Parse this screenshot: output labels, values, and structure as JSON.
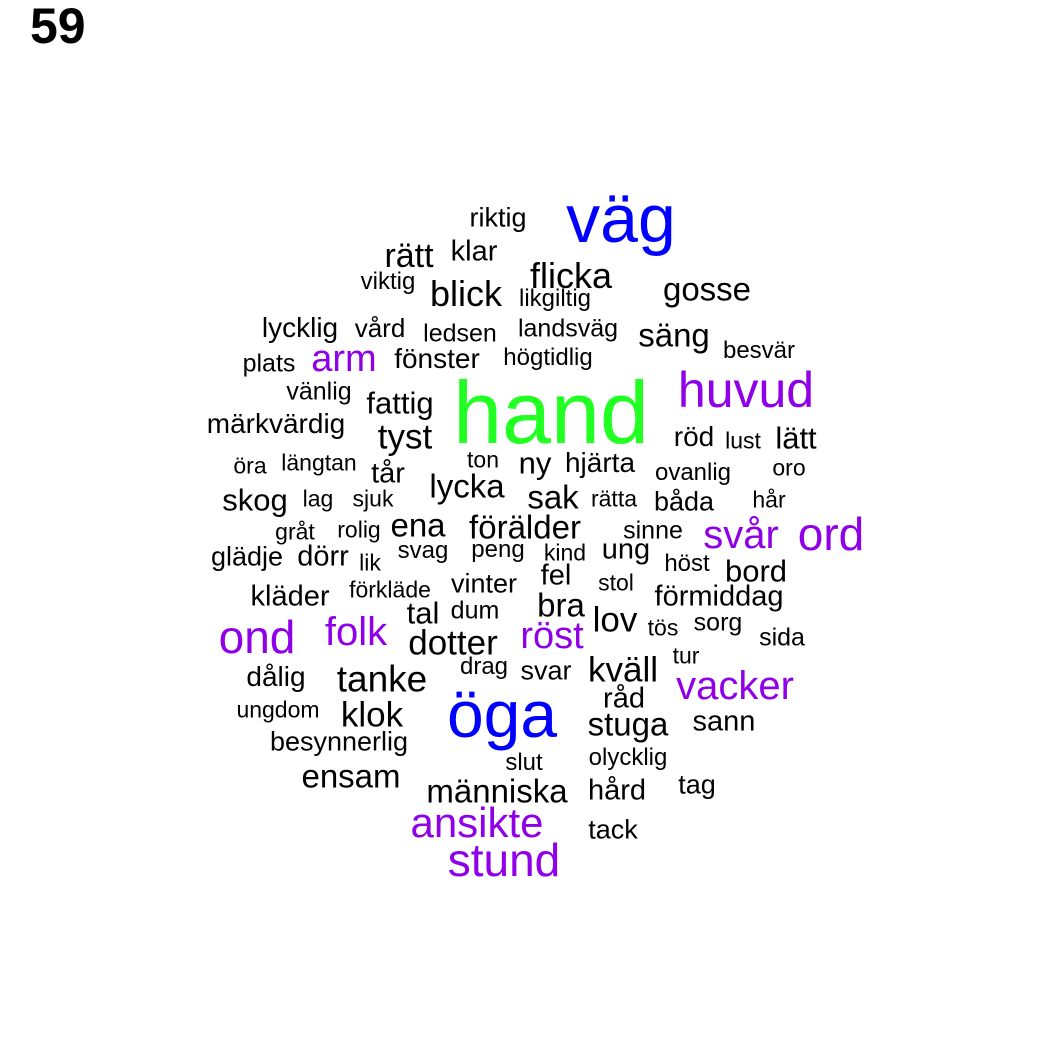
{
  "page_number": "59",
  "colors": {
    "biggest": "#22ff22",
    "big": "#0000ff",
    "medium": "#8f00e8",
    "small": "#000000"
  },
  "words": [
    {
      "text": "hand",
      "tier": "biggest"
    },
    {
      "text": "väg",
      "tier": "big"
    },
    {
      "text": "öga",
      "tier": "big"
    },
    {
      "text": "huvud",
      "tier": "medium"
    },
    {
      "text": "arm",
      "tier": "medium"
    },
    {
      "text": "svår",
      "tier": "medium"
    },
    {
      "text": "ord",
      "tier": "medium"
    },
    {
      "text": "ond",
      "tier": "medium"
    },
    {
      "text": "folk",
      "tier": "medium"
    },
    {
      "text": "röst",
      "tier": "medium"
    },
    {
      "text": "vacker",
      "tier": "medium"
    },
    {
      "text": "ansikte",
      "tier": "medium"
    },
    {
      "text": "stund",
      "tier": "medium"
    },
    {
      "text": "riktig",
      "tier": "small"
    },
    {
      "text": "rätt",
      "tier": "small"
    },
    {
      "text": "klar",
      "tier": "small"
    },
    {
      "text": "flicka",
      "tier": "small"
    },
    {
      "text": "viktig",
      "tier": "small"
    },
    {
      "text": "blick",
      "tier": "small"
    },
    {
      "text": "likgiltig",
      "tier": "small"
    },
    {
      "text": "gosse",
      "tier": "small"
    },
    {
      "text": "lycklig",
      "tier": "small"
    },
    {
      "text": "vård",
      "tier": "small"
    },
    {
      "text": "ledsen",
      "tier": "small"
    },
    {
      "text": "landsväg",
      "tier": "small"
    },
    {
      "text": "säng",
      "tier": "small"
    },
    {
      "text": "besvär",
      "tier": "small"
    },
    {
      "text": "plats",
      "tier": "small"
    },
    {
      "text": "fönster",
      "tier": "small"
    },
    {
      "text": "högtidlig",
      "tier": "small"
    },
    {
      "text": "vänlig",
      "tier": "small"
    },
    {
      "text": "fattig",
      "tier": "small"
    },
    {
      "text": "märkvärdig",
      "tier": "small"
    },
    {
      "text": "tyst",
      "tier": "small"
    },
    {
      "text": "röd",
      "tier": "small"
    },
    {
      "text": "lust",
      "tier": "small"
    },
    {
      "text": "lätt",
      "tier": "small"
    },
    {
      "text": "öra",
      "tier": "small"
    },
    {
      "text": "längtan",
      "tier": "small"
    },
    {
      "text": "ton",
      "tier": "small"
    },
    {
      "text": "ny",
      "tier": "small"
    },
    {
      "text": "hjärta",
      "tier": "small"
    },
    {
      "text": "ovanlig",
      "tier": "small"
    },
    {
      "text": "oro",
      "tier": "small"
    },
    {
      "text": "tår",
      "tier": "small"
    },
    {
      "text": "lycka",
      "tier": "small"
    },
    {
      "text": "skog",
      "tier": "small"
    },
    {
      "text": "lag",
      "tier": "small"
    },
    {
      "text": "sjuk",
      "tier": "small"
    },
    {
      "text": "sak",
      "tier": "small"
    },
    {
      "text": "rätta",
      "tier": "small"
    },
    {
      "text": "båda",
      "tier": "small"
    },
    {
      "text": "hår",
      "tier": "small"
    },
    {
      "text": "gråt",
      "tier": "small"
    },
    {
      "text": "rolig",
      "tier": "small"
    },
    {
      "text": "ena",
      "tier": "small"
    },
    {
      "text": "förälder",
      "tier": "small"
    },
    {
      "text": "sinne",
      "tier": "small"
    },
    {
      "text": "glädje",
      "tier": "small"
    },
    {
      "text": "dörr",
      "tier": "small"
    },
    {
      "text": "lik",
      "tier": "small"
    },
    {
      "text": "svag",
      "tier": "small"
    },
    {
      "text": "peng",
      "tier": "small"
    },
    {
      "text": "kind",
      "tier": "small"
    },
    {
      "text": "ung",
      "tier": "small"
    },
    {
      "text": "höst",
      "tier": "small"
    },
    {
      "text": "fel",
      "tier": "small"
    },
    {
      "text": "bord",
      "tier": "small"
    },
    {
      "text": "kläder",
      "tier": "small"
    },
    {
      "text": "förkläde",
      "tier": "small"
    },
    {
      "text": "vinter",
      "tier": "small"
    },
    {
      "text": "stol",
      "tier": "small"
    },
    {
      "text": "förmiddag",
      "tier": "small"
    },
    {
      "text": "tal",
      "tier": "small"
    },
    {
      "text": "dum",
      "tier": "small"
    },
    {
      "text": "bra",
      "tier": "small"
    },
    {
      "text": "lov",
      "tier": "small"
    },
    {
      "text": "tös",
      "tier": "small"
    },
    {
      "text": "sorg",
      "tier": "small"
    },
    {
      "text": "sida",
      "tier": "small"
    },
    {
      "text": "dotter",
      "tier": "small"
    },
    {
      "text": "tur",
      "tier": "small"
    },
    {
      "text": "dålig",
      "tier": "small"
    },
    {
      "text": "drag",
      "tier": "small"
    },
    {
      "text": "svar",
      "tier": "small"
    },
    {
      "text": "kväll",
      "tier": "small"
    },
    {
      "text": "tanke",
      "tier": "small"
    },
    {
      "text": "råd",
      "tier": "small"
    },
    {
      "text": "ungdom",
      "tier": "small"
    },
    {
      "text": "klok",
      "tier": "small"
    },
    {
      "text": "stuga",
      "tier": "small"
    },
    {
      "text": "sann",
      "tier": "small"
    },
    {
      "text": "besynnerlig",
      "tier": "small"
    },
    {
      "text": "olycklig",
      "tier": "small"
    },
    {
      "text": "slut",
      "tier": "small"
    },
    {
      "text": "ensam",
      "tier": "small"
    },
    {
      "text": "tag",
      "tier": "small"
    },
    {
      "text": "människa",
      "tier": "small"
    },
    {
      "text": "hård",
      "tier": "small"
    },
    {
      "text": "tack",
      "tier": "small"
    }
  ]
}
